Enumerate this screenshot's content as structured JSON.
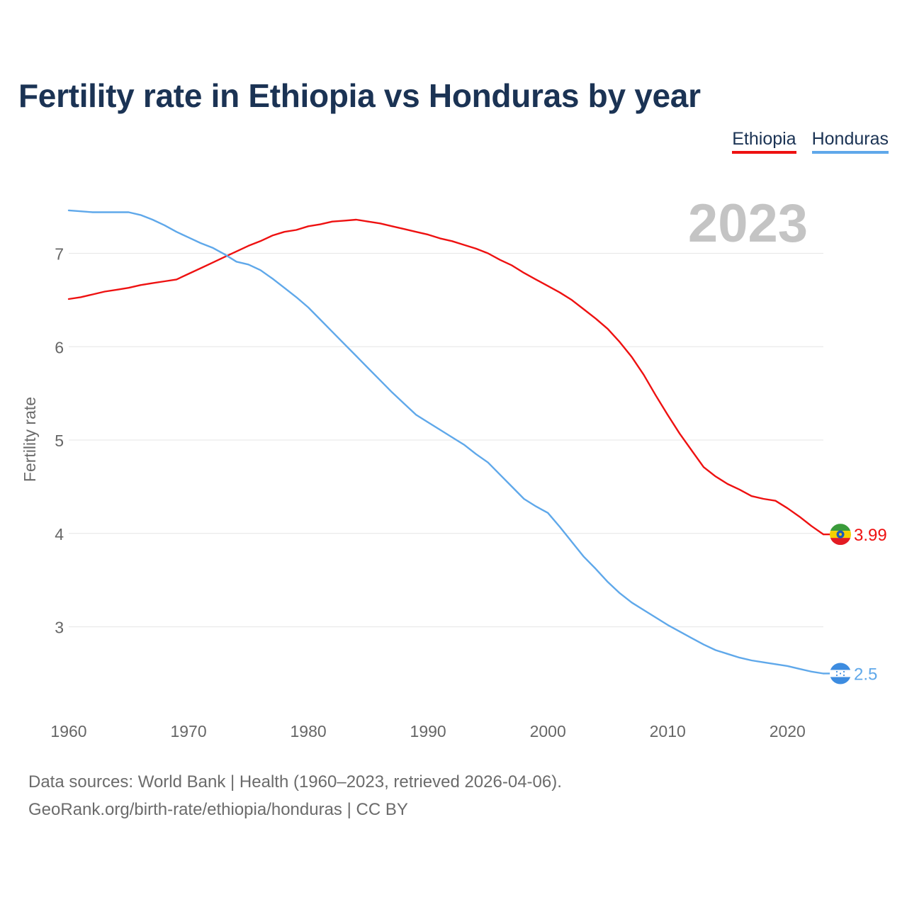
{
  "title": "Fertility rate in Ethiopia vs Honduras by year",
  "legend": [
    {
      "label": "Ethiopia",
      "color": "#ee1111"
    },
    {
      "label": "Honduras",
      "color": "#5fa8ea"
    }
  ],
  "year_watermark": "2023",
  "footer": {
    "sources": "Data sources: World Bank | Health (1960–2023, retrieved 2026-04-06).",
    "credit": "GeoRank.org/birth-rate/ethiopia/honduras | CC BY"
  },
  "chart_data": {
    "type": "line",
    "title": "Fertility rate in Ethiopia vs Honduras by year",
    "xlabel": "",
    "ylabel": "Fertility rate",
    "xlim": [
      1960,
      2023
    ],
    "ylim": [
      2.2,
      7.55
    ],
    "x_ticks": [
      1960,
      1970,
      1980,
      1990,
      2000,
      2010,
      2020
    ],
    "y_ticks": [
      3,
      4,
      5,
      6,
      7
    ],
    "grid": true,
    "legend_position": "top-right",
    "x": [
      1960,
      1961,
      1962,
      1963,
      1964,
      1965,
      1966,
      1967,
      1968,
      1969,
      1970,
      1971,
      1972,
      1973,
      1974,
      1975,
      1976,
      1977,
      1978,
      1979,
      1980,
      1981,
      1982,
      1983,
      1984,
      1985,
      1986,
      1987,
      1988,
      1989,
      1990,
      1991,
      1992,
      1993,
      1994,
      1995,
      1996,
      1997,
      1998,
      1999,
      2000,
      2001,
      2002,
      2003,
      2004,
      2005,
      2006,
      2007,
      2008,
      2009,
      2010,
      2011,
      2012,
      2013,
      2014,
      2015,
      2016,
      2017,
      2018,
      2019,
      2020,
      2021,
      2022,
      2023
    ],
    "series": [
      {
        "name": "Ethiopia",
        "color": "#ee1111",
        "end_label": "3.99",
        "values": [
          6.51,
          6.53,
          6.56,
          6.59,
          6.61,
          6.63,
          6.66,
          6.68,
          6.7,
          6.72,
          6.78,
          6.84,
          6.9,
          6.96,
          7.02,
          7.08,
          7.13,
          7.19,
          7.23,
          7.25,
          7.29,
          7.31,
          7.34,
          7.35,
          7.36,
          7.34,
          7.32,
          7.29,
          7.26,
          7.23,
          7.2,
          7.16,
          7.13,
          7.09,
          7.05,
          7.0,
          6.93,
          6.87,
          6.79,
          6.72,
          6.65,
          6.58,
          6.5,
          6.4,
          6.3,
          6.19,
          6.05,
          5.89,
          5.7,
          5.48,
          5.27,
          5.07,
          4.89,
          4.71,
          4.61,
          4.53,
          4.47,
          4.4,
          4.37,
          4.35,
          4.27,
          4.18,
          4.08,
          3.99
        ]
      },
      {
        "name": "Honduras",
        "color": "#5fa8ea",
        "end_label": "2.5",
        "values": [
          7.46,
          7.45,
          7.44,
          7.44,
          7.44,
          7.44,
          7.41,
          7.36,
          7.3,
          7.23,
          7.17,
          7.11,
          7.06,
          6.99,
          6.91,
          6.88,
          6.82,
          6.73,
          6.63,
          6.53,
          6.42,
          6.29,
          6.16,
          6.03,
          5.9,
          5.77,
          5.64,
          5.51,
          5.39,
          5.27,
          5.19,
          5.11,
          5.03,
          4.95,
          4.85,
          4.76,
          4.63,
          4.5,
          4.37,
          4.29,
          4.22,
          4.07,
          3.91,
          3.75,
          3.62,
          3.48,
          3.36,
          3.26,
          3.18,
          3.1,
          3.02,
          2.95,
          2.88,
          2.81,
          2.75,
          2.71,
          2.67,
          2.64,
          2.62,
          2.6,
          2.58,
          2.55,
          2.52,
          2.5
        ]
      }
    ]
  }
}
